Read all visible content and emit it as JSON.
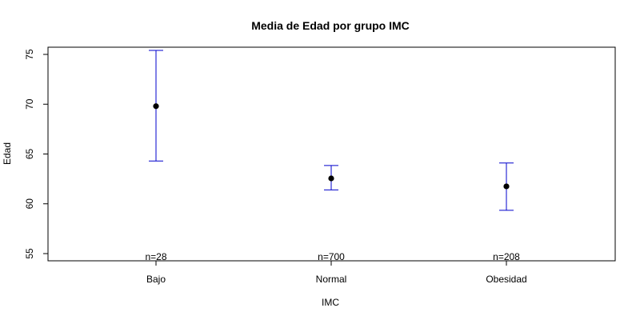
{
  "chart_data": {
    "type": "scatter",
    "title": "Media de Edad por grupo IMC",
    "xlabel": "IMC",
    "ylabel": "Edad",
    "categories": [
      "Bajo",
      "Normal",
      "Obesidad"
    ],
    "ylim": [
      55,
      75
    ],
    "yticks": [
      "55",
      "60",
      "65",
      "70",
      "75"
    ],
    "grid": false,
    "series": [
      {
        "means": [
          69.8,
          62.55,
          61.75
        ],
        "lower": [
          64.3,
          61.4,
          59.35
        ],
        "upper": [
          75.4,
          63.85,
          64.1
        ]
      }
    ],
    "counts": [
      "n=28",
      "n=700",
      "n=208"
    ],
    "colors": {
      "errorbar": "#0000cc",
      "point": "#000000"
    }
  }
}
